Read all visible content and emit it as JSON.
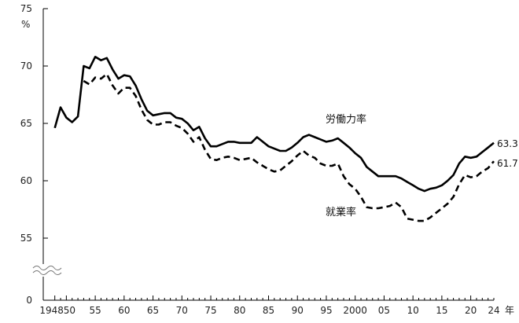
{
  "chart_data": {
    "type": "line",
    "title": "",
    "ylabel": "%",
    "xlabel": "年",
    "ylim": [
      55,
      75
    ],
    "y_axis_break": true,
    "y_ticks": [
      0,
      55,
      60,
      65,
      70,
      75
    ],
    "x_tick_labels": [
      {
        "year": 1948,
        "label": "1948"
      },
      {
        "year": 1950,
        "label": "50"
      },
      {
        "year": 1955,
        "label": "55"
      },
      {
        "year": 1960,
        "label": "60"
      },
      {
        "year": 1965,
        "label": "65"
      },
      {
        "year": 1970,
        "label": "70"
      },
      {
        "year": 1975,
        "label": "75"
      },
      {
        "year": 1980,
        "label": "80"
      },
      {
        "year": 1985,
        "label": "85"
      },
      {
        "year": 1990,
        "label": "90"
      },
      {
        "year": 1995,
        "label": "95"
      },
      {
        "year": 2000,
        "label": "2000"
      },
      {
        "year": 2005,
        "label": "05"
      },
      {
        "year": 2010,
        "label": "10"
      },
      {
        "year": 2015,
        "label": "15"
      },
      {
        "year": 2020,
        "label": "20"
      },
      {
        "year": 2024,
        "label": "24"
      }
    ],
    "series": [
      {
        "name": "労働力率",
        "style": "solid",
        "end_label": "63.3",
        "x": [
          1948,
          1949,
          1950,
          1951,
          1952,
          1953,
          1954,
          1955,
          1956,
          1957,
          1958,
          1959,
          1960,
          1961,
          1962,
          1963,
          1964,
          1965,
          1966,
          1967,
          1968,
          1969,
          1970,
          1971,
          1972,
          1973,
          1974,
          1975,
          1976,
          1977,
          1978,
          1979,
          1980,
          1981,
          1982,
          1983,
          1984,
          1985,
          1986,
          1987,
          1988,
          1989,
          1990,
          1991,
          1992,
          1993,
          1994,
          1995,
          1996,
          1997,
          1998,
          1999,
          2000,
          2001,
          2002,
          2003,
          2004,
          2005,
          2006,
          2007,
          2008,
          2009,
          2010,
          2011,
          2012,
          2013,
          2014,
          2015,
          2016,
          2017,
          2018,
          2019,
          2020,
          2021,
          2022,
          2023,
          2024
        ],
        "values": [
          64.6,
          66.4,
          65.5,
          65.1,
          65.6,
          70.0,
          69.8,
          70.8,
          70.5,
          70.7,
          69.7,
          68.9,
          69.2,
          69.1,
          68.3,
          67.1,
          66.1,
          65.7,
          65.8,
          65.9,
          65.9,
          65.5,
          65.4,
          65.0,
          64.4,
          64.7,
          63.7,
          63.0,
          63.0,
          63.2,
          63.4,
          63.4,
          63.3,
          63.3,
          63.3,
          63.8,
          63.4,
          63.0,
          62.8,
          62.6,
          62.6,
          62.9,
          63.3,
          63.8,
          64.0,
          63.8,
          63.6,
          63.4,
          63.5,
          63.7,
          63.3,
          62.9,
          62.4,
          62.0,
          61.2,
          60.8,
          60.4,
          60.4,
          60.4,
          60.4,
          60.2,
          59.9,
          59.6,
          59.3,
          59.1,
          59.3,
          59.4,
          59.6,
          60.0,
          60.5,
          61.5,
          62.1,
          62.0,
          62.1,
          62.5,
          62.9,
          63.3
        ]
      },
      {
        "name": "就業率",
        "style": "dashed",
        "end_label": "61.7",
        "x": [
          1953,
          1954,
          1955,
          1956,
          1957,
          1958,
          1959,
          1960,
          1961,
          1962,
          1963,
          1964,
          1965,
          1966,
          1967,
          1968,
          1969,
          1970,
          1971,
          1972,
          1973,
          1974,
          1975,
          1976,
          1977,
          1978,
          1979,
          1980,
          1981,
          1982,
          1983,
          1984,
          1985,
          1986,
          1987,
          1988,
          1989,
          1990,
          1991,
          1992,
          1993,
          1994,
          1995,
          1996,
          1997,
          1998,
          1999,
          2000,
          2001,
          2002,
          2003,
          2004,
          2005,
          2006,
          2007,
          2008,
          2009,
          2010,
          2011,
          2012,
          2013,
          2014,
          2015,
          2016,
          2017,
          2018,
          2019,
          2020,
          2021,
          2022,
          2023,
          2024
        ],
        "values": [
          68.7,
          68.4,
          69.0,
          68.9,
          69.3,
          68.3,
          67.6,
          68.1,
          68.1,
          67.4,
          66.2,
          65.3,
          64.9,
          64.9,
          65.1,
          65.1,
          64.8,
          64.6,
          64.1,
          63.4,
          63.8,
          62.7,
          61.9,
          61.8,
          62.0,
          62.1,
          62.0,
          61.8,
          61.9,
          62.0,
          61.6,
          61.3,
          61.0,
          60.8,
          60.9,
          61.3,
          61.7,
          62.2,
          62.6,
          62.2,
          62.0,
          61.5,
          61.3,
          61.3,
          61.5,
          60.4,
          59.7,
          59.3,
          58.6,
          57.7,
          57.6,
          57.6,
          57.7,
          57.8,
          58.1,
          57.7,
          56.7,
          56.6,
          56.5,
          56.5,
          56.8,
          57.2,
          57.6,
          58.0,
          58.6,
          59.7,
          60.5,
          60.3,
          60.4,
          60.8,
          61.1,
          61.7
        ]
      }
    ]
  }
}
